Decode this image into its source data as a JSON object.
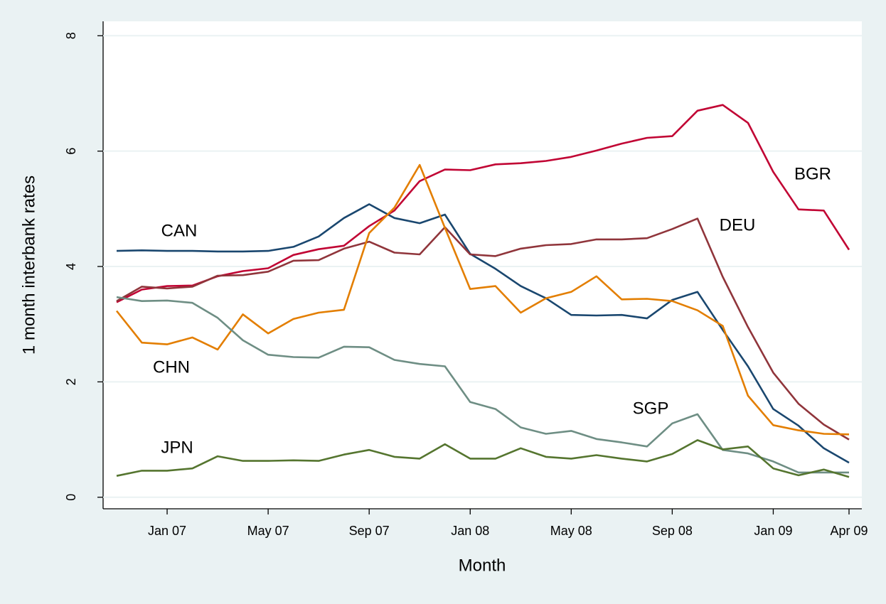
{
  "chart_data": {
    "type": "line",
    "x_label": "Month",
    "y_label": "1 month interbank rates",
    "categories": [
      null,
      null,
      "Jan 07",
      null,
      null,
      null,
      "May 07",
      null,
      null,
      null,
      "Sep 07",
      null,
      null,
      null,
      "Jan 08",
      null,
      null,
      null,
      "May 08",
      null,
      null,
      null,
      "Sep 08",
      null,
      null,
      null,
      "Jan 09",
      null,
      null,
      "Apr 09"
    ],
    "ylim": [
      -0.2,
      8.25
    ],
    "yticks": [
      0,
      2,
      4,
      6,
      8
    ],
    "grid": true,
    "series": [
      {
        "name": "CAN",
        "color": "#1a476f",
        "values": [
          4.27,
          4.28,
          4.27,
          4.27,
          4.26,
          4.26,
          4.27,
          4.34,
          4.52,
          4.84,
          5.08,
          4.84,
          4.75,
          4.9,
          4.22,
          3.96,
          3.66,
          3.45,
          3.16,
          3.15,
          3.16,
          3.1,
          3.42,
          3.56,
          2.9,
          2.27,
          1.53,
          1.24,
          0.85,
          0.6
        ]
      },
      {
        "name": "BGR",
        "color": "#c10534",
        "values": [
          3.38,
          3.6,
          3.66,
          3.67,
          3.83,
          3.92,
          3.97,
          4.2,
          4.3,
          4.36,
          4.7,
          4.97,
          5.48,
          5.68,
          5.67,
          5.77,
          5.79,
          5.83,
          5.9,
          6.01,
          6.13,
          6.23,
          6.26,
          6.7,
          6.8,
          6.49,
          5.64,
          4.99,
          4.97,
          4.29
        ]
      },
      {
        "name": "DEU",
        "color": "#90353b",
        "values": [
          3.4,
          3.65,
          3.62,
          3.65,
          3.84,
          3.85,
          3.91,
          4.1,
          4.11,
          4.31,
          4.43,
          4.24,
          4.21,
          4.68,
          4.21,
          4.18,
          4.31,
          4.37,
          4.39,
          4.47,
          4.47,
          4.49,
          4.65,
          4.83,
          3.82,
          2.95,
          2.16,
          1.62,
          1.26,
          1.0
        ]
      },
      {
        "name": "CHN",
        "color": "#e37e00",
        "values": [
          3.23,
          2.68,
          2.65,
          2.77,
          2.56,
          3.17,
          2.84,
          3.09,
          3.2,
          3.25,
          4.58,
          5.02,
          5.76,
          4.67,
          3.61,
          3.66,
          3.2,
          3.45,
          3.56,
          3.83,
          3.43,
          3.44,
          3.4,
          3.24,
          2.97,
          1.76,
          1.25,
          1.16,
          1.1,
          1.09
        ]
      },
      {
        "name": "SGP",
        "color": "#6e8e84",
        "values": [
          3.47,
          3.4,
          3.41,
          3.37,
          3.11,
          2.72,
          2.47,
          2.43,
          2.42,
          2.61,
          2.6,
          2.38,
          2.31,
          2.27,
          1.65,
          1.53,
          1.21,
          1.1,
          1.15,
          1.01,
          0.95,
          0.88,
          1.28,
          1.44,
          0.82,
          0.76,
          0.62,
          0.43,
          0.43,
          0.43
        ]
      },
      {
        "name": "JPN",
        "color": "#55752f",
        "values": [
          0.37,
          0.46,
          0.46,
          0.5,
          0.71,
          0.63,
          0.63,
          0.64,
          0.63,
          0.74,
          0.82,
          0.7,
          0.67,
          0.92,
          0.67,
          0.67,
          0.85,
          0.7,
          0.67,
          0.73,
          0.67,
          0.62,
          0.75,
          0.99,
          0.83,
          0.88,
          0.5,
          0.38,
          0.48,
          0.35
        ]
      }
    ]
  }
}
